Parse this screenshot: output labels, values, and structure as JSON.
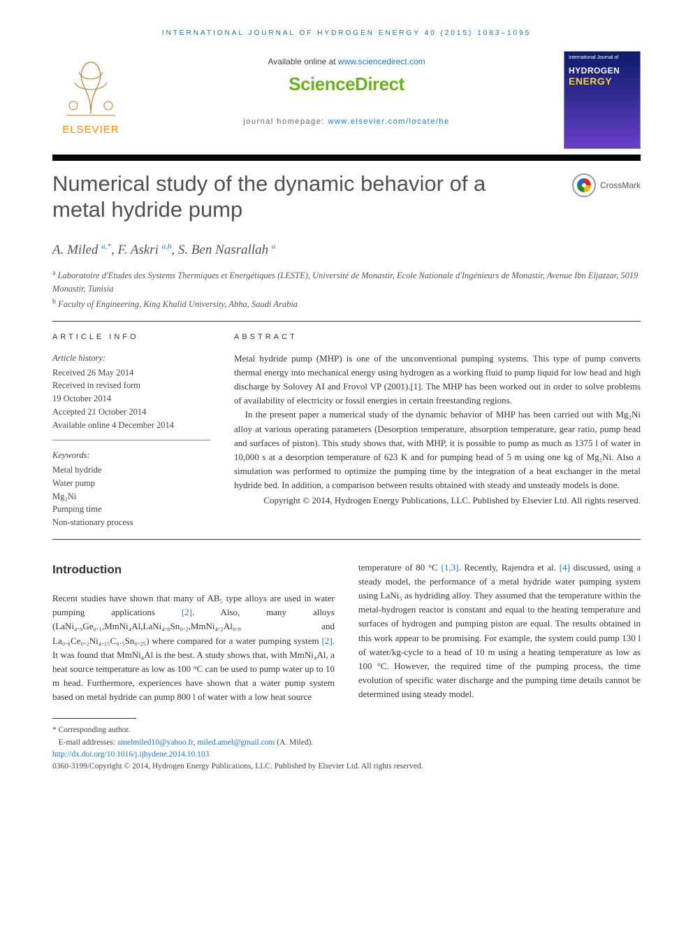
{
  "running_head": "INTERNATIONAL JOURNAL OF HYDROGEN ENERGY 40 (2015) 1083–1095",
  "header": {
    "available_prefix": "Available online at ",
    "available_url_text": "www.sciencedirect.com",
    "sciencedirect_logo_text": "ScienceDirect",
    "journal_homepage_prefix": "journal homepage: ",
    "journal_homepage_url_text": "www.elsevier.com/locate/he",
    "elsevier_label": "ELSEVIER",
    "cover": {
      "line1": "International Journal of",
      "line2": "HYDROGEN",
      "line3": "ENERGY"
    }
  },
  "crossmark_label": "CrossMark",
  "title": "Numerical study of the dynamic behavior of a metal hydride pump",
  "authors_html": "A. Miled <sup>a,</sup><sup class=\"star\">*</sup>, F. Askri <sup>a,b</sup>, S. Ben Nasrallah <sup>a</sup>",
  "affiliations": [
    "a Laboratoire d'Etudes des Systems Thermiques et Energétiques (LESTE), Université de Monastir, Ecole Nationale d'Ingénieurs de Monastir, Avenue Ibn Eljazzar, 5019 Monastir, Tunisia",
    "b Faculty of Engineering, King Khalid University, Abha, Saudi Arabia"
  ],
  "article_info": {
    "label": "ARTICLE INFO",
    "history_label": "Article history:",
    "history": [
      "Received 26 May 2014",
      "Received in revised form",
      "19 October 2014",
      "Accepted 21 October 2014",
      "Available online 4 December 2014"
    ],
    "keywords_label": "Keywords:",
    "keywords": [
      "Metal hydride",
      "Water pump",
      "Mg₂Ni",
      "Pumping time",
      "Non-stationary process"
    ]
  },
  "abstract": {
    "label": "ABSTRACT",
    "p1": "Metal hydride pump (MHP) is one of the unconventional pumping systems. This type of pump converts thermal energy into mechanical energy using hydrogen as a working fluid to pump liquid for low head and high discharge by Solovey AI and Frovol VP (2001).[1]. The MHP has been worked out in order to solve problems of availability of electricity or fossil energies in certain freestanding regions.",
    "p2": "In the present paper a numerical study of the dynamic behavior of MHP has been carried out with Mg₂Ni alloy at various operating parameters (Desorption temperature, absorption temperature, gear ratio, pump head and surfaces of piston). This study shows that, with MHP, it is possible to pump as much as 1375 l of water in 10,000 s at a desorption temperature of 623 K and for pumping head of 5 m using one kg of Mg₂Ni. Also a simulation was performed to optimize the pumping time by the integration of a heat exchanger in the metal hydride bed. In addition, a comparison between results obtained with steady and unsteady models is done.",
    "copyright": "Copyright © 2014, Hydrogen Energy Publications, LLC. Published by Elsevier Ltd. All rights reserved."
  },
  "body": {
    "intro_heading": "Introduction",
    "col1": "Recent studies have shown that many of AB₅ type alloys are used in water pumping applications [2]. Also, many alloys (LaNi₄.₉Ge₀.₁,MmNi₄Al,LaNi₄.₈Sn₀.₂,MmNi₄.₂Al₀.₈ and La₀.₈Ce₀.₂Ni₄.₂₅C₀.₅Sn₀.₂₅) where compared for a water pumping system [2]. It was found that MmNi₄Al is the best. A study shows that, with MmNi₄Al, a heat source temperature as low as 100 °C can be used to pump water up to 10 m head. Furthermore, experiences have shown that a water pump system based on metal hydride can pump 800 l of water with a low heat source",
    "col2": "temperature of 80 °C [1,3]. Recently, Rajendra et al. [4] discussed, using a steady model, the performance of a metal hydride water pumping system using LaNi₅ as hydriding alloy. They assumed that the temperature within the metal-hydrogen reactor is constant and equal to the heating temperature and surfaces of hydrogen and pumping piston are equal. The results obtained in this work appear to be promising. For example, the system could pump 130 l of water/kg-cycle to a head of 10 m using a heating temperature as low as 100 °C. However, the required time of the pumping process, the time evolution of specific water discharge and the pumping time details cannot be determined using steady model."
  },
  "footer": {
    "star_label": "* Corresponding author.",
    "email_label": "E-mail addresses: ",
    "email1": "amelmiled10@yahoo.fr",
    "email2": "miled.amel@gmail.com",
    "email_suffix": " (A. Miled).",
    "doi": "http://dx.doi.org/10.1016/j.ijhydene.2014.10.103",
    "issn_line": "0360-3199/Copyright © 2014, Hydrogen Energy Publications, LLC. Published by Elsevier Ltd. All rights reserved."
  },
  "colors": {
    "link": "#1976d2",
    "sd_green": "#6bb11e",
    "elsevier_orange": "#ff8a00",
    "rule_black": "#000000",
    "cover_gradient_top": "#0b1b6b",
    "cover_gradient_mid": "#3a2f9a",
    "cover_gradient_bot": "#6b3fc9"
  }
}
